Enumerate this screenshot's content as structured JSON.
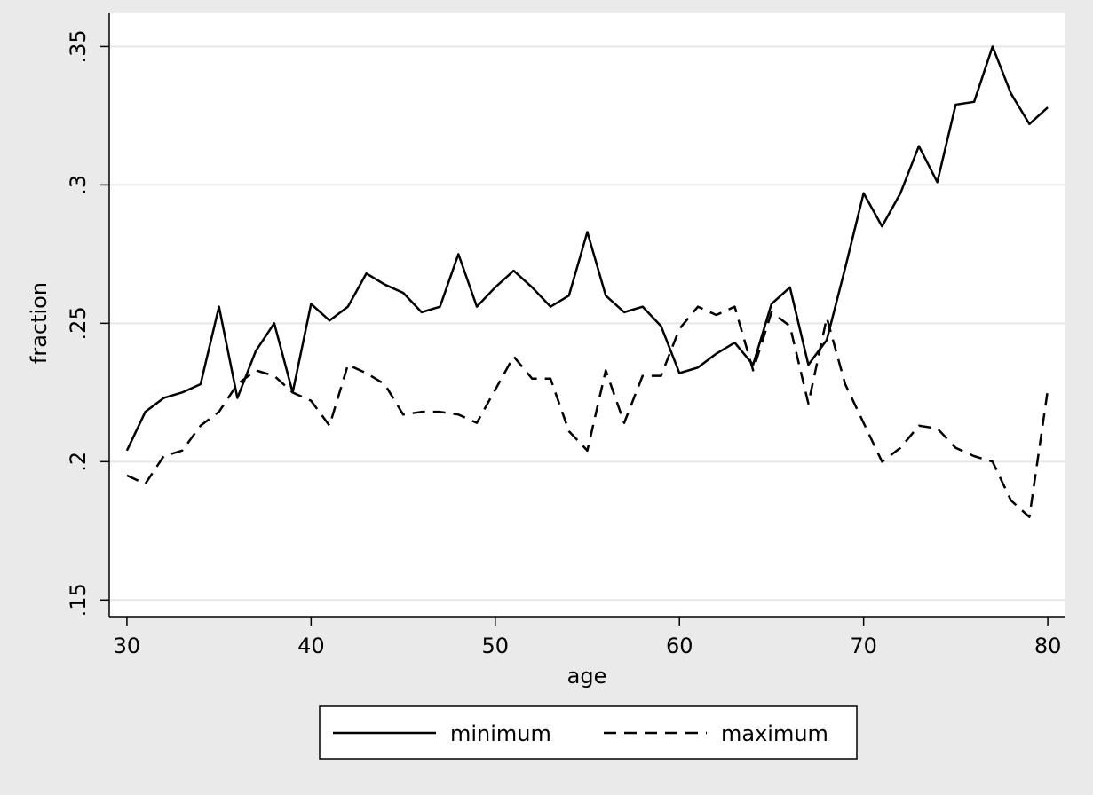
{
  "chart_data": {
    "type": "line",
    "x_label": "age",
    "y_label": "fraction",
    "x": [
      30,
      31,
      32,
      33,
      34,
      35,
      36,
      37,
      38,
      39,
      40,
      41,
      42,
      43,
      44,
      45,
      46,
      47,
      48,
      49,
      50,
      51,
      52,
      53,
      54,
      55,
      56,
      57,
      58,
      59,
      60,
      61,
      62,
      63,
      64,
      65,
      66,
      67,
      68,
      69,
      70,
      71,
      72,
      73,
      74,
      75,
      76,
      77,
      78,
      79,
      80
    ],
    "series": [
      {
        "name": "minimum",
        "color": "#000000",
        "dash": "solid",
        "values": [
          0.204,
          0.218,
          0.223,
          0.225,
          0.228,
          0.256,
          0.223,
          0.24,
          0.25,
          0.225,
          0.257,
          0.251,
          0.256,
          0.268,
          0.264,
          0.261,
          0.254,
          0.256,
          0.275,
          0.256,
          0.263,
          0.269,
          0.263,
          0.256,
          0.26,
          0.283,
          0.26,
          0.254,
          0.256,
          0.249,
          0.232,
          0.234,
          0.239,
          0.243,
          0.235,
          0.257,
          0.263,
          0.235,
          0.244,
          0.27,
          0.297,
          0.285,
          0.297,
          0.314,
          0.301,
          0.329,
          0.33,
          0.35,
          0.333,
          0.322,
          0.328
        ]
      },
      {
        "name": "maximum",
        "color": "#000000",
        "dash": "dashed",
        "values": [
          0.195,
          0.192,
          0.202,
          0.204,
          0.213,
          0.218,
          0.228,
          0.233,
          0.231,
          0.225,
          0.222,
          0.213,
          0.235,
          0.232,
          0.228,
          0.217,
          0.218,
          0.218,
          0.217,
          0.214,
          0.226,
          0.238,
          0.23,
          0.23,
          0.211,
          0.204,
          0.233,
          0.214,
          0.231,
          0.231,
          0.248,
          0.256,
          0.253,
          0.256,
          0.233,
          0.254,
          0.249,
          0.221,
          0.252,
          0.228,
          0.214,
          0.2,
          0.205,
          0.213,
          0.212,
          0.205,
          0.202,
          0.2,
          0.186,
          0.18,
          0.226
        ]
      }
    ],
    "xlim": [
      29.04,
      80.96
    ],
    "xticks": [
      30,
      40,
      50,
      60,
      70,
      80
    ],
    "ylim": [
      0.144,
      0.362
    ],
    "yticks": [
      {
        "value": 0.15,
        "label": ".15"
      },
      {
        "value": 0.2,
        "label": ".2"
      },
      {
        "value": 0.25,
        "label": ".25"
      },
      {
        "value": 0.3,
        "label": ".3"
      },
      {
        "value": 0.35,
        "label": ".35"
      }
    ],
    "grid": true,
    "legend": "bottom"
  }
}
